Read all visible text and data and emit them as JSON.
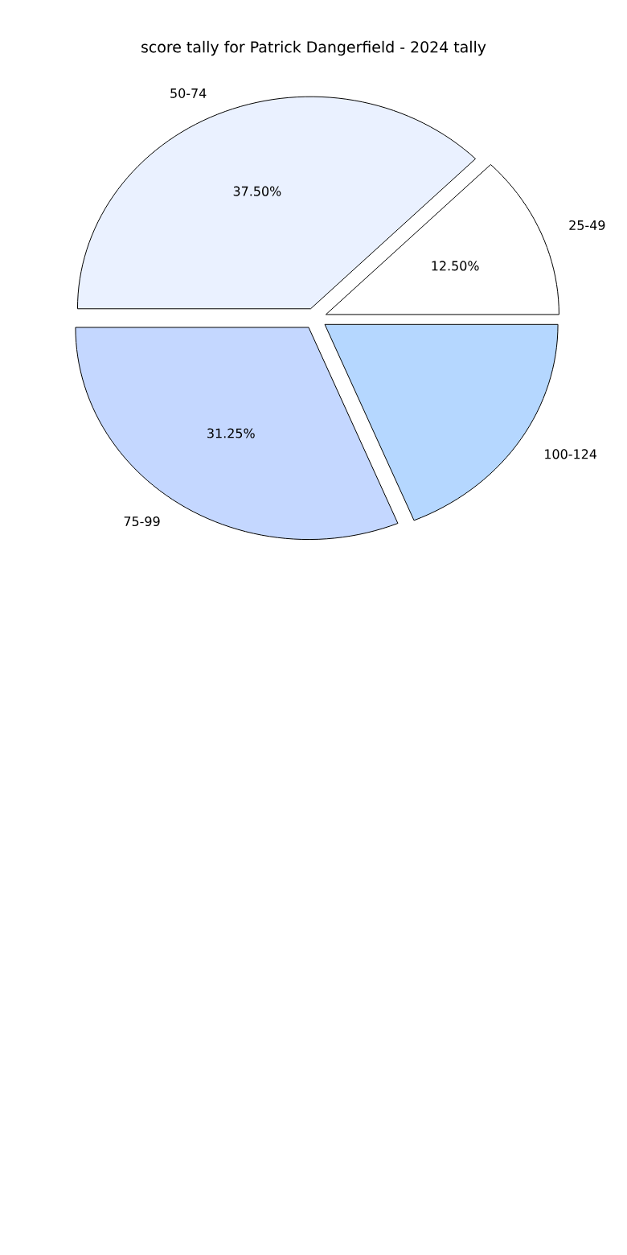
{
  "chart_data": {
    "type": "pie",
    "title": "score tally for Patrick Dangerfield - 2024 tally",
    "categories": [
      "25-49",
      "50-74",
      "75-99",
      "100-124"
    ],
    "values": [
      12.5,
      37.5,
      31.25,
      18.75
    ],
    "colors": [
      "#ffffff",
      "#eaf1ff",
      "#c4d7ff",
      "#b5d7ff"
    ],
    "value_labels": [
      "12.50%",
      "37.50%",
      "31.25%",
      null
    ]
  }
}
